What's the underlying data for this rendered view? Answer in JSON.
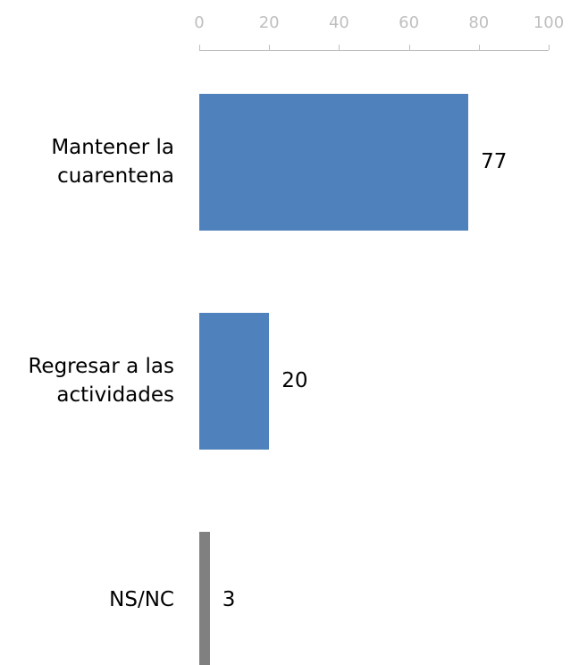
{
  "chart_data": {
    "type": "barh",
    "categories": [
      "Mantener la cuarentena",
      "Regresar a las actividades",
      "NS/NC"
    ],
    "values": [
      77,
      20,
      3
    ],
    "colors": [
      "#4f81bd",
      "#4f81bd",
      "#808080"
    ],
    "xlim": [
      0,
      100
    ],
    "xticks": [
      0,
      20,
      40,
      60,
      80,
      100
    ]
  }
}
